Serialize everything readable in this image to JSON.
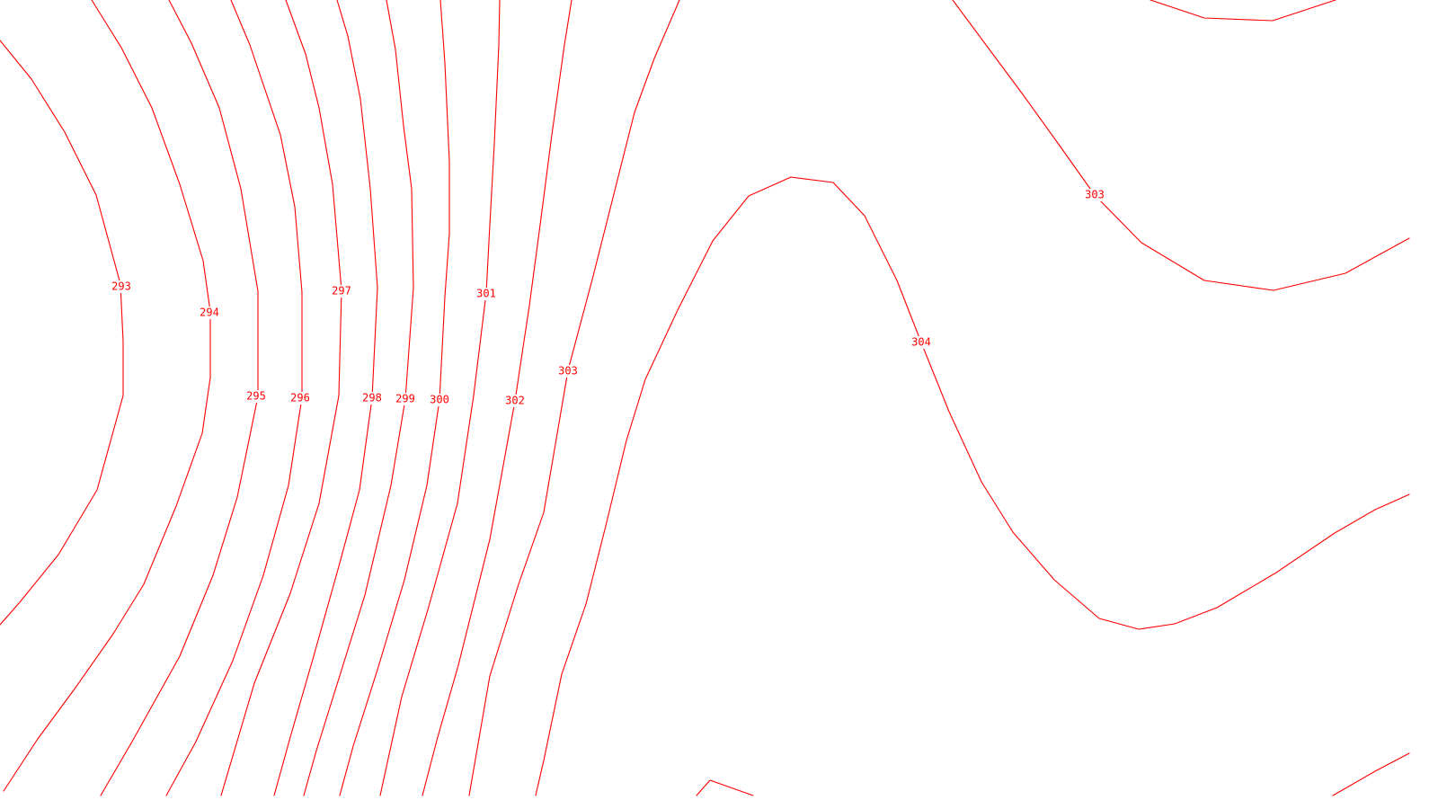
{
  "chart_data": {
    "type": "contour",
    "line_color": "#ff0000",
    "background": "#ffffff",
    "grid": false,
    "legend": "none",
    "levels": [
      {
        "level": 293,
        "label": "293"
      },
      {
        "level": 294,
        "label": "294"
      },
      {
        "level": 295,
        "label": "295"
      },
      {
        "level": 296,
        "label": "296"
      },
      {
        "level": 297,
        "label": "297"
      },
      {
        "level": 298,
        "label": "298"
      },
      {
        "level": 299,
        "label": "299"
      },
      {
        "level": 300,
        "label": "300"
      },
      {
        "level": 301,
        "label": "301"
      },
      {
        "level": 302,
        "label": "302"
      },
      {
        "level": 303,
        "label": "303"
      },
      {
        "level": 303,
        "label": "303"
      },
      {
        "level": 304,
        "label": "304"
      },
      {
        "level": 304,
        "label": ""
      },
      {
        "level": 304,
        "label": ""
      },
      {
        "level": 304,
        "label": ""
      }
    ]
  }
}
